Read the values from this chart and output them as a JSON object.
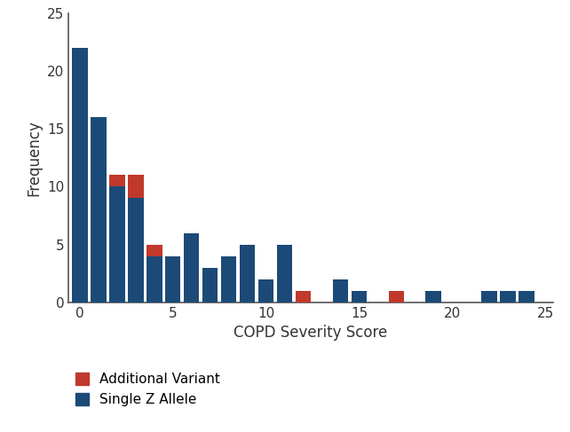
{
  "bars": [
    {
      "x": 0,
      "blue": 22,
      "red": 0
    },
    {
      "x": 1,
      "blue": 16,
      "red": 0
    },
    {
      "x": 2,
      "blue": 10,
      "red": 1
    },
    {
      "x": 3,
      "blue": 9,
      "red": 2
    },
    {
      "x": 4,
      "blue": 4,
      "red": 1
    },
    {
      "x": 5,
      "blue": 4,
      "red": 0
    },
    {
      "x": 6,
      "blue": 6,
      "red": 0
    },
    {
      "x": 7,
      "blue": 3,
      "red": 0
    },
    {
      "x": 8,
      "blue": 4,
      "red": 0
    },
    {
      "x": 9,
      "blue": 5,
      "red": 0
    },
    {
      "x": 10,
      "blue": 2,
      "red": 0
    },
    {
      "x": 11,
      "blue": 5,
      "red": 0
    },
    {
      "x": 12,
      "blue": 0,
      "red": 1
    },
    {
      "x": 14,
      "blue": 2,
      "red": 0
    },
    {
      "x": 15,
      "blue": 1,
      "red": 0
    },
    {
      "x": 17,
      "blue": 0,
      "red": 1
    },
    {
      "x": 19,
      "blue": 1,
      "red": 0
    },
    {
      "x": 22,
      "blue": 1,
      "red": 0
    },
    {
      "x": 23,
      "blue": 1,
      "red": 0
    },
    {
      "x": 24,
      "blue": 1,
      "red": 0
    }
  ],
  "bar_width": 0.85,
  "blue_color": "#1c4a78",
  "red_color": "#c0392b",
  "xlabel": "COPD Severity Score",
  "ylabel": "Frequency",
  "xlim": [
    -0.6,
    25.4
  ],
  "ylim": [
    0,
    25
  ],
  "yticks": [
    0,
    5,
    10,
    15,
    20,
    25
  ],
  "xticks": [
    0,
    5,
    10,
    15,
    20,
    25
  ],
  "legend_additional": "Additional Variant",
  "legend_single": "Single Z Allele",
  "bg_color": "#ffffff",
  "spine_color": "#555555",
  "tick_color": "#333333",
  "tick_fontsize": 11,
  "label_fontsize": 12,
  "legend_fontsize": 11
}
